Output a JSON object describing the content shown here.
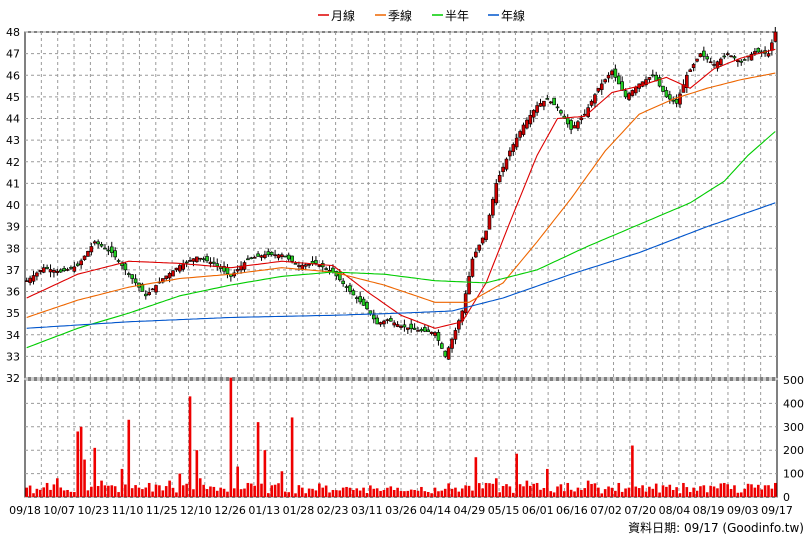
{
  "chart_data": [
    {
      "type": "candlestick",
      "legend": [
        {
          "name": "月線",
          "color": "#dd0000"
        },
        {
          "name": "季線",
          "color": "#ee6600"
        },
        {
          "name": "半年",
          "color": "#00cc00"
        },
        {
          "name": "年線",
          "color": "#0055cc"
        }
      ],
      "y_ticks": [
        32,
        33,
        34,
        35,
        36,
        37,
        38,
        39,
        40,
        41,
        42,
        43,
        44,
        45,
        46,
        47,
        48
      ],
      "ylim": [
        32,
        48
      ],
      "grid": true,
      "legend_position": "top-center",
      "price_sample": [
        [
          0,
          36.5
        ],
        [
          5,
          37.1
        ],
        [
          10,
          36.9
        ],
        [
          15,
          37.2
        ],
        [
          20,
          38.3
        ],
        [
          25,
          37.8
        ],
        [
          30,
          36.8
        ],
        [
          35,
          35.8
        ],
        [
          40,
          36.6
        ],
        [
          45,
          37.2
        ],
        [
          50,
          37.6
        ],
        [
          55,
          37.3
        ],
        [
          60,
          36.7
        ],
        [
          65,
          37.5
        ],
        [
          70,
          37.7
        ],
        [
          75,
          37.7
        ],
        [
          80,
          37.2
        ],
        [
          85,
          37.3
        ],
        [
          90,
          36.9
        ],
        [
          95,
          36.0
        ],
        [
          100,
          35.2
        ],
        [
          103,
          34.5
        ],
        [
          106,
          34.7
        ],
        [
          110,
          34.4
        ],
        [
          115,
          34.2
        ],
        [
          120,
          34.1
        ],
        [
          123,
          33.0
        ],
        [
          126,
          34.2
        ],
        [
          128,
          35.1
        ],
        [
          131,
          37.5
        ],
        [
          135,
          38.8
        ],
        [
          138,
          41.0
        ],
        [
          142,
          42.5
        ],
        [
          146,
          43.7
        ],
        [
          150,
          44.6
        ],
        [
          153,
          44.9
        ],
        [
          156,
          44.5
        ],
        [
          160,
          43.5
        ],
        [
          164,
          44.2
        ],
        [
          168,
          45.4
        ],
        [
          172,
          46.2
        ],
        [
          176,
          45.0
        ],
        [
          180,
          45.6
        ],
        [
          184,
          46.0
        ],
        [
          188,
          45.0
        ],
        [
          191,
          44.7
        ],
        [
          194,
          46.0
        ],
        [
          198,
          47.0
        ],
        [
          202,
          46.5
        ],
        [
          206,
          47.0
        ],
        [
          210,
          46.6
        ],
        [
          214,
          47.1
        ],
        [
          218,
          47.0
        ],
        [
          220,
          48.0
        ]
      ],
      "moving_averages": {
        "月線": [
          [
            0,
            35.7
          ],
          [
            15,
            36.8
          ],
          [
            30,
            37.4
          ],
          [
            45,
            37.3
          ],
          [
            60,
            37.1
          ],
          [
            75,
            37.4
          ],
          [
            90,
            37.2
          ],
          [
            100,
            36.0
          ],
          [
            110,
            34.9
          ],
          [
            120,
            34.3
          ],
          [
            128,
            34.6
          ],
          [
            135,
            36.4
          ],
          [
            142,
            39.2
          ],
          [
            150,
            42.3
          ],
          [
            156,
            44.0
          ],
          [
            164,
            44.1
          ],
          [
            172,
            45.2
          ],
          [
            180,
            45.5
          ],
          [
            188,
            45.9
          ],
          [
            195,
            45.4
          ],
          [
            202,
            46.3
          ],
          [
            210,
            46.8
          ],
          [
            220,
            47.2
          ]
        ],
        "季線": [
          [
            0,
            34.8
          ],
          [
            15,
            35.6
          ],
          [
            30,
            36.2
          ],
          [
            45,
            36.6
          ],
          [
            60,
            36.8
          ],
          [
            75,
            37.1
          ],
          [
            90,
            36.9
          ],
          [
            105,
            36.3
          ],
          [
            120,
            35.5
          ],
          [
            130,
            35.5
          ],
          [
            140,
            36.4
          ],
          [
            150,
            38.3
          ],
          [
            160,
            40.3
          ],
          [
            170,
            42.5
          ],
          [
            180,
            44.2
          ],
          [
            190,
            44.9
          ],
          [
            200,
            45.4
          ],
          [
            210,
            45.8
          ],
          [
            220,
            46.1
          ]
        ],
        "半年": [
          [
            0,
            33.4
          ],
          [
            15,
            34.3
          ],
          [
            30,
            35.0
          ],
          [
            45,
            35.8
          ],
          [
            60,
            36.3
          ],
          [
            75,
            36.7
          ],
          [
            90,
            36.9
          ],
          [
            105,
            36.8
          ],
          [
            120,
            36.5
          ],
          [
            135,
            36.4
          ],
          [
            150,
            37.0
          ],
          [
            165,
            38.1
          ],
          [
            180,
            39.1
          ],
          [
            195,
            40.1
          ],
          [
            205,
            41.1
          ],
          [
            212,
            42.3
          ],
          [
            220,
            43.4
          ]
        ],
        "年線": [
          [
            0,
            34.3
          ],
          [
            30,
            34.6
          ],
          [
            60,
            34.8
          ],
          [
            90,
            34.9
          ],
          [
            110,
            35.0
          ],
          [
            125,
            35.1
          ],
          [
            140,
            35.7
          ],
          [
            160,
            36.8
          ],
          [
            180,
            37.8
          ],
          [
            200,
            39.0
          ],
          [
            220,
            40.1
          ]
        ]
      }
    },
    {
      "type": "bar",
      "y_ticks": [
        0,
        100,
        200,
        300,
        400,
        500
      ],
      "ylim": [
        0,
        500
      ],
      "volume_sample": [
        [
          0,
          40
        ],
        [
          3,
          35
        ],
        [
          6,
          60
        ],
        [
          9,
          80
        ],
        [
          12,
          30
        ],
        [
          15,
          280
        ],
        [
          16,
          300
        ],
        [
          17,
          160
        ],
        [
          20,
          210
        ],
        [
          22,
          70
        ],
        [
          25,
          50
        ],
        [
          28,
          120
        ],
        [
          30,
          330
        ],
        [
          33,
          40
        ],
        [
          36,
          60
        ],
        [
          39,
          50
        ],
        [
          42,
          70
        ],
        [
          45,
          100
        ],
        [
          48,
          430
        ],
        [
          50,
          200
        ],
        [
          51,
          80
        ],
        [
          54,
          45
        ],
        [
          57,
          40
        ],
        [
          60,
          510
        ],
        [
          62,
          130
        ],
        [
          65,
          60
        ],
        [
          68,
          320
        ],
        [
          70,
          200
        ],
        [
          72,
          50
        ],
        [
          75,
          110
        ],
        [
          78,
          340
        ],
        [
          81,
          40
        ],
        [
          84,
          35
        ],
        [
          87,
          40
        ],
        [
          90,
          30
        ],
        [
          93,
          40
        ],
        [
          96,
          30
        ],
        [
          99,
          40
        ],
        [
          102,
          35
        ],
        [
          105,
          30
        ],
        [
          108,
          30
        ],
        [
          111,
          25
        ],
        [
          114,
          30
        ],
        [
          117,
          25
        ],
        [
          120,
          40
        ],
        [
          123,
          35
        ],
        [
          126,
          40
        ],
        [
          129,
          50
        ],
        [
          132,
          170
        ],
        [
          135,
          60
        ],
        [
          138,
          80
        ],
        [
          141,
          55
        ],
        [
          144,
          185
        ],
        [
          147,
          70
        ],
        [
          150,
          60
        ],
        [
          153,
          120
        ],
        [
          156,
          45
        ],
        [
          159,
          60
        ],
        [
          162,
          40
        ],
        [
          165,
          70
        ],
        [
          168,
          40
        ],
        [
          171,
          45
        ],
        [
          174,
          60
        ],
        [
          177,
          40
        ],
        [
          178,
          220
        ],
        [
          181,
          50
        ],
        [
          184,
          35
        ],
        [
          187,
          50
        ],
        [
          190,
          30
        ],
        [
          193,
          60
        ],
        [
          196,
          40
        ],
        [
          199,
          50
        ],
        [
          202,
          45
        ],
        [
          205,
          60
        ],
        [
          208,
          50
        ],
        [
          211,
          35
        ],
        [
          214,
          40
        ],
        [
          217,
          50
        ],
        [
          220,
          60
        ]
      ]
    }
  ],
  "x_labels": [
    "09/18",
    "10/07",
    "10/23",
    "11/10",
    "11/25",
    "12/10",
    "12/26",
    "01/13",
    "01/28",
    "02/23",
    "03/11",
    "03/26",
    "04/14",
    "04/29",
    "05/15",
    "06/01",
    "06/16",
    "07/02",
    "07/20",
    "08/04",
    "08/19",
    "09/03",
    "09/17"
  ],
  "footer": "資料日期: 09/17  (Goodinfo.tw)"
}
